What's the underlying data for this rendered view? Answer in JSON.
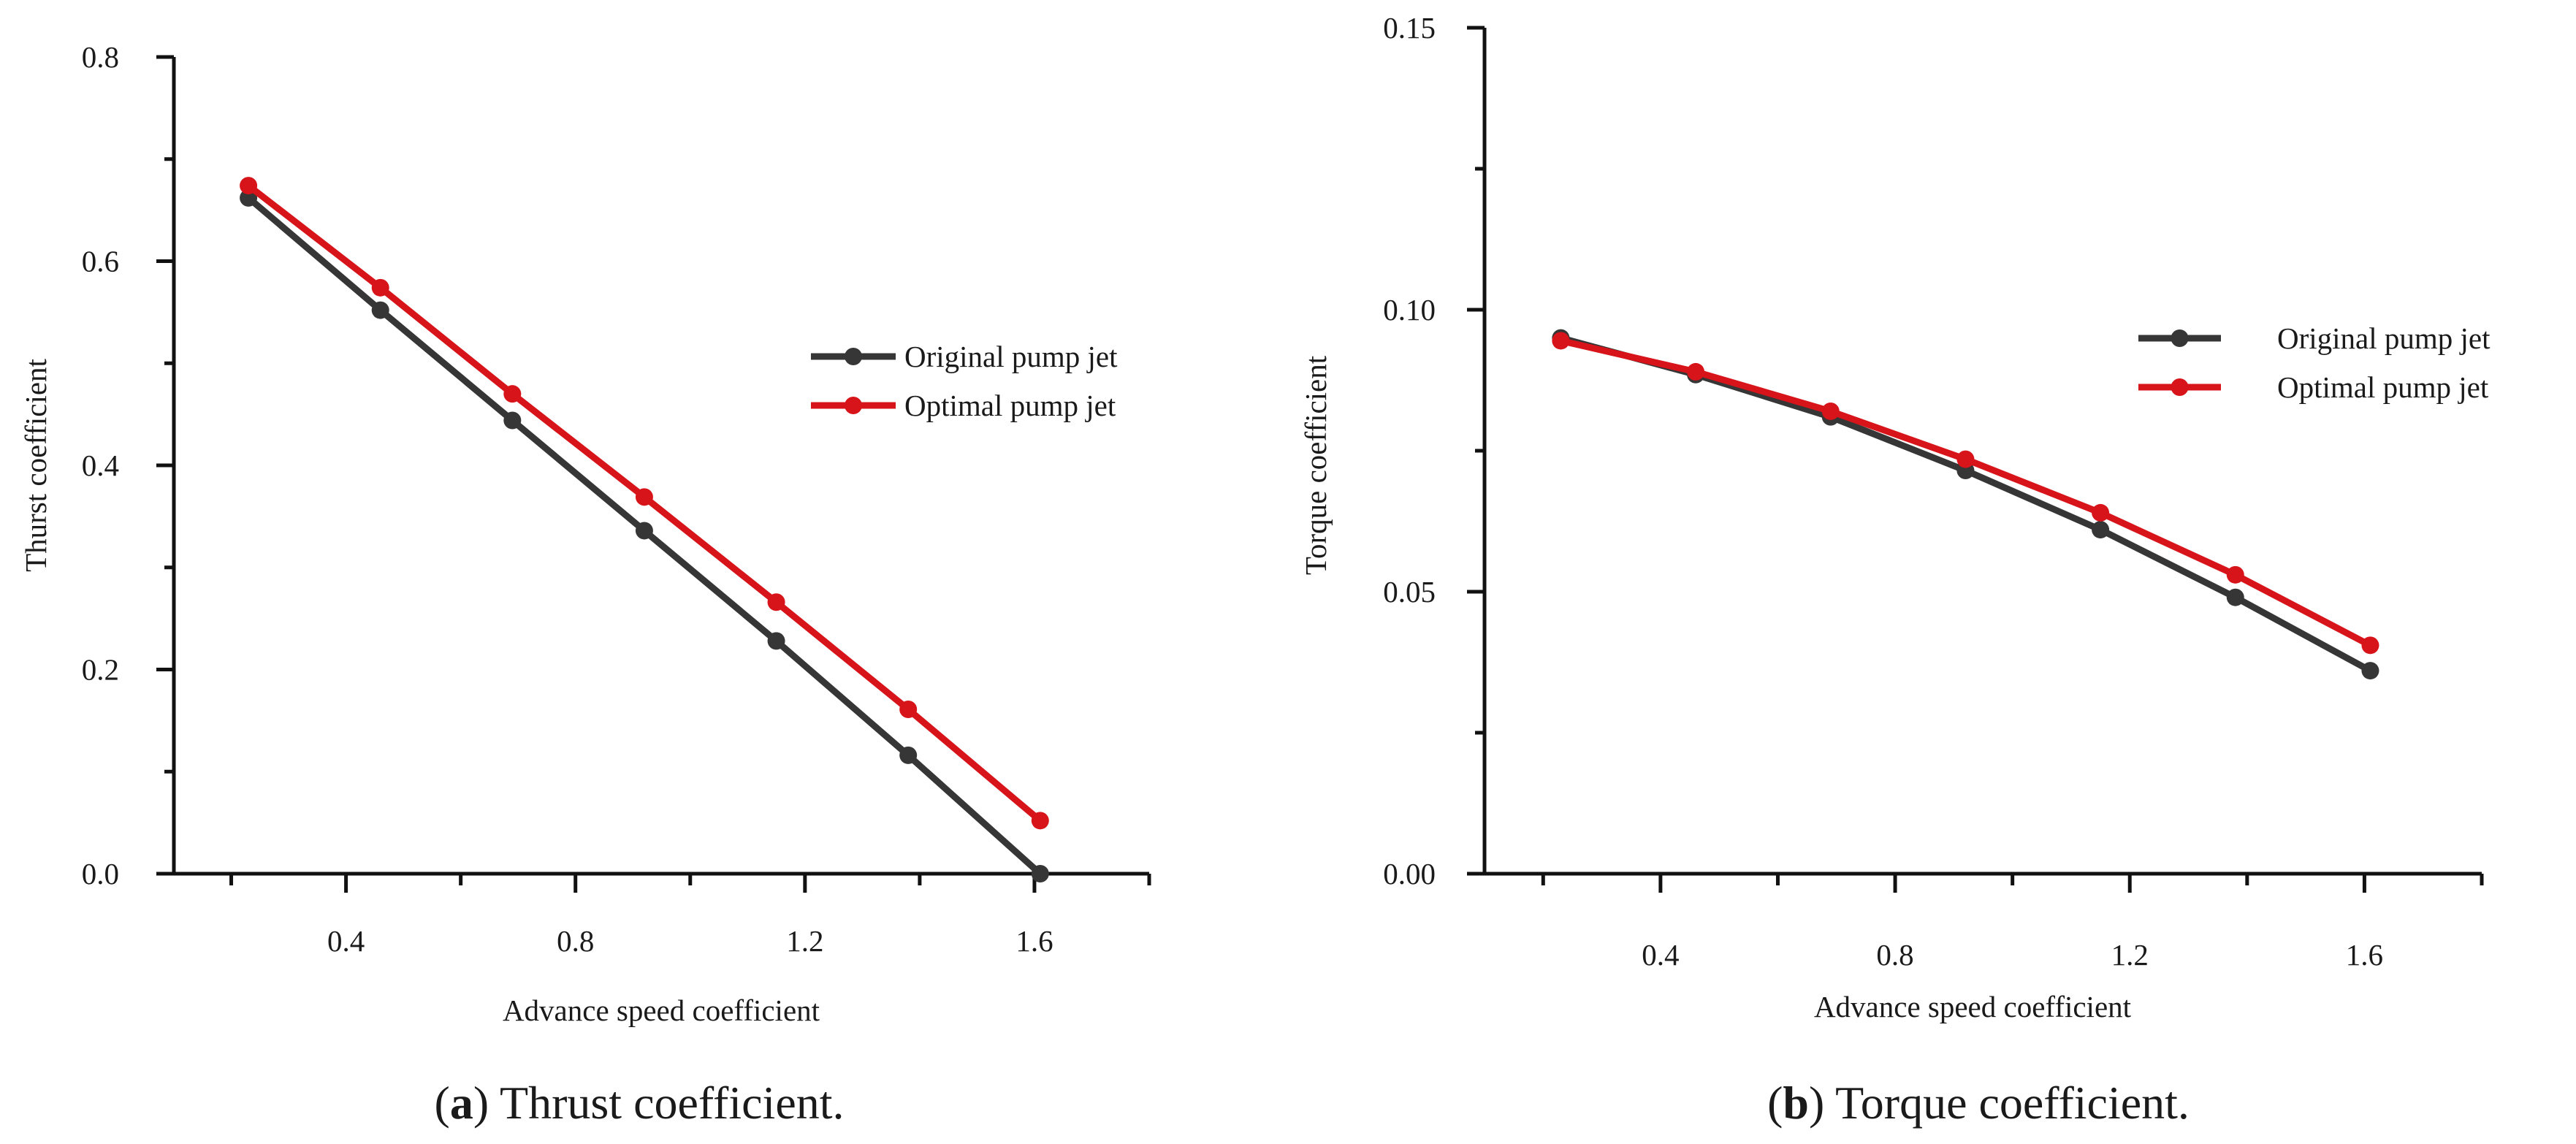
{
  "chart_data": [
    {
      "type": "line",
      "panel": "a",
      "title": "",
      "xlabel": "Advance speed coefficient",
      "ylabel": "Thurst coefficient",
      "xlim": [
        0.1,
        1.8
      ],
      "ylim": [
        0.0,
        0.8
      ],
      "xticks": [
        0.4,
        0.8,
        1.2,
        1.6
      ],
      "xtick_labels": [
        "0.4",
        "0.8",
        "1.2",
        "1.6"
      ],
      "yticks": [
        0.0,
        0.2,
        0.4,
        0.6,
        0.8
      ],
      "ytick_labels": [
        "0.0",
        "0.2",
        "0.4",
        "0.6",
        "0.8"
      ],
      "legend_position": "right-middle",
      "x": [
        0.23,
        0.46,
        0.69,
        0.92,
        1.15,
        1.38,
        1.61
      ],
      "series": [
        {
          "name": "Original pump jet",
          "color": "#363636",
          "values": [
            0.662,
            0.552,
            0.444,
            0.336,
            0.228,
            0.116,
            0.0
          ]
        },
        {
          "name": "Optimal  pump jet",
          "color": "#d7141a",
          "values": [
            0.674,
            0.574,
            0.47,
            0.369,
            0.266,
            0.161,
            0.052
          ]
        }
      ],
      "caption_label": "a",
      "caption_text": " Thrust coefficient."
    },
    {
      "type": "line",
      "panel": "b",
      "title": "",
      "xlabel": "Advance speed coefficient",
      "ylabel": "Torque coefficient",
      "xlim": [
        0.1,
        1.8
      ],
      "ylim": [
        0.0,
        0.15
      ],
      "xticks": [
        0.4,
        0.8,
        1.2,
        1.6
      ],
      "xtick_labels": [
        "0.4",
        "0.8",
        "1.2",
        "1.6"
      ],
      "yticks": [
        0.0,
        0.05,
        0.1,
        0.15
      ],
      "ytick_labels": [
        "0.00",
        "0.05",
        "0.10",
        "0.15"
      ],
      "legend_position": "top-right",
      "x": [
        0.23,
        0.46,
        0.69,
        0.92,
        1.15,
        1.38,
        1.61
      ],
      "series": [
        {
          "name": "Original pump jet",
          "color": "#363636",
          "values": [
            0.095,
            0.0885,
            0.081,
            0.0715,
            0.061,
            0.049,
            0.036
          ]
        },
        {
          "name": "Optimal pump jet",
          "color": "#d7141a",
          "values": [
            0.0945,
            0.089,
            0.082,
            0.0735,
            0.064,
            0.053,
            0.0405
          ]
        }
      ],
      "caption_label": "b",
      "caption_text": " Torque coefficient."
    }
  ]
}
